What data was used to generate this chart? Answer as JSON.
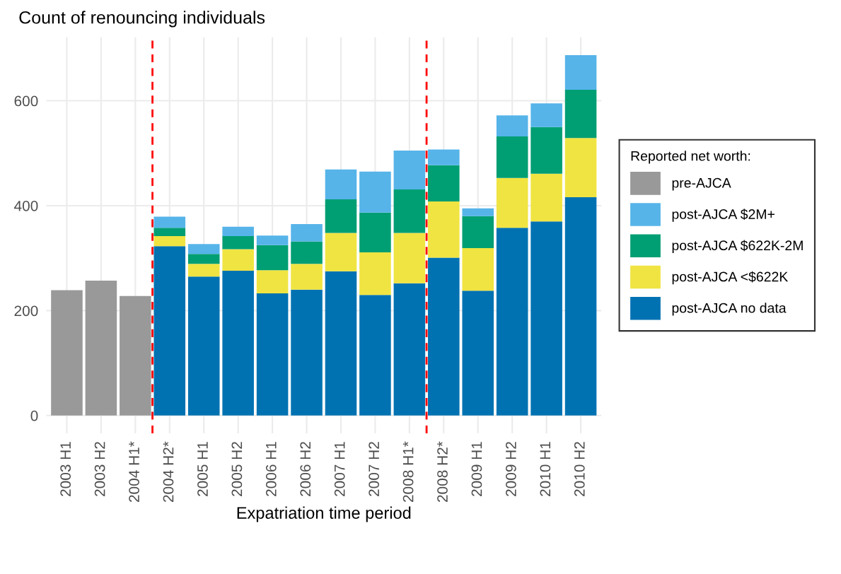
{
  "chart_data": {
    "type": "bar",
    "stacked": true,
    "title": "Count of renouncing individuals",
    "xlabel": "Expatriation time period",
    "legend_title": "Reported net worth:",
    "categories": [
      "2003 H1",
      "2003 H2",
      "2004 H1*",
      "2004 H2*",
      "2005 H1",
      "2005 H2",
      "2006 H1",
      "2006 H2",
      "2007 H1",
      "2007 H2",
      "2008 H1*",
      "2008 H2*",
      "2009 H1",
      "2009 H2",
      "2010 H1",
      "2010 H2"
    ],
    "series": [
      {
        "name": "post-AJCA no data",
        "color": "#0072b2",
        "values": [
          null,
          null,
          null,
          323,
          265,
          276,
          233,
          240,
          275,
          230,
          252,
          301,
          238,
          358,
          370,
          416
        ]
      },
      {
        "name": "post-AJCA <$622K",
        "color": "#f0e442",
        "values": [
          null,
          null,
          null,
          19,
          24,
          41,
          44,
          49,
          73,
          81,
          96,
          107,
          81,
          95,
          91,
          113
        ]
      },
      {
        "name": "post-AJCA $622K-2M",
        "color": "#009e73",
        "values": [
          null,
          null,
          null,
          16,
          19,
          25,
          48,
          43,
          64,
          76,
          83,
          69,
          61,
          79,
          89,
          92
        ]
      },
      {
        "name": "post-AJCA $2M+",
        "color": "#56b4e9",
        "values": [
          null,
          null,
          null,
          21,
          19,
          18,
          18,
          33,
          57,
          78,
          74,
          30,
          15,
          40,
          45,
          66
        ]
      },
      {
        "name": "pre-AJCA",
        "color": "#999999",
        "values": [
          239,
          257,
          228,
          null,
          null,
          null,
          null,
          null,
          null,
          null,
          null,
          null,
          null,
          null,
          null,
          null
        ]
      }
    ],
    "ylim": [
      -34,
      721
    ],
    "yticks": [
      0,
      200,
      400,
      600
    ],
    "grid": true,
    "legend": "right"
  }
}
